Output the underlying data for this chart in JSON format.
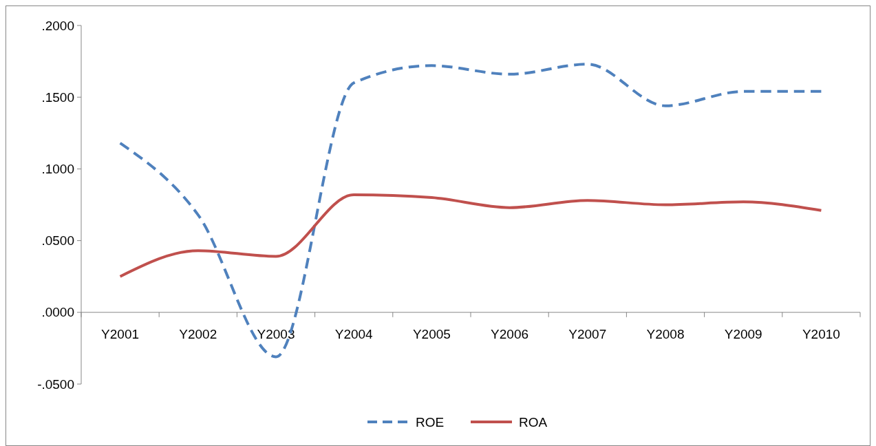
{
  "chart_data": {
    "type": "line",
    "categories": [
      "Y2001",
      "Y2002",
      "Y2003",
      "Y2004",
      "Y2005",
      "Y2006",
      "Y2007",
      "Y2008",
      "Y2009",
      "Y2010"
    ],
    "series": [
      {
        "name": "ROE",
        "color": "#4f81bd",
        "line_style": "dashed",
        "values": [
          0.118,
          0.068,
          -0.031,
          0.16,
          0.172,
          0.166,
          0.173,
          0.144,
          0.154,
          0.154
        ]
      },
      {
        "name": "ROA",
        "color": "#c0504d",
        "line_style": "solid",
        "values": [
          0.025,
          0.043,
          0.039,
          0.082,
          0.08,
          0.073,
          0.078,
          0.075,
          0.077,
          0.071
        ]
      }
    ],
    "ylim": [
      -0.05,
      0.2
    ],
    "yticks": [
      {
        "value": -0.05,
        "label": "-.0500"
      },
      {
        "value": 0,
        "label": ".0000"
      },
      {
        "value": 0.05,
        "label": ".0500"
      },
      {
        "value": 0.1,
        "label": ".1000"
      },
      {
        "value": 0.15,
        "label": ".1500"
      },
      {
        "value": 0.2,
        "label": ".2000"
      }
    ],
    "grid": false,
    "legend": "bottom",
    "marker": "none"
  }
}
